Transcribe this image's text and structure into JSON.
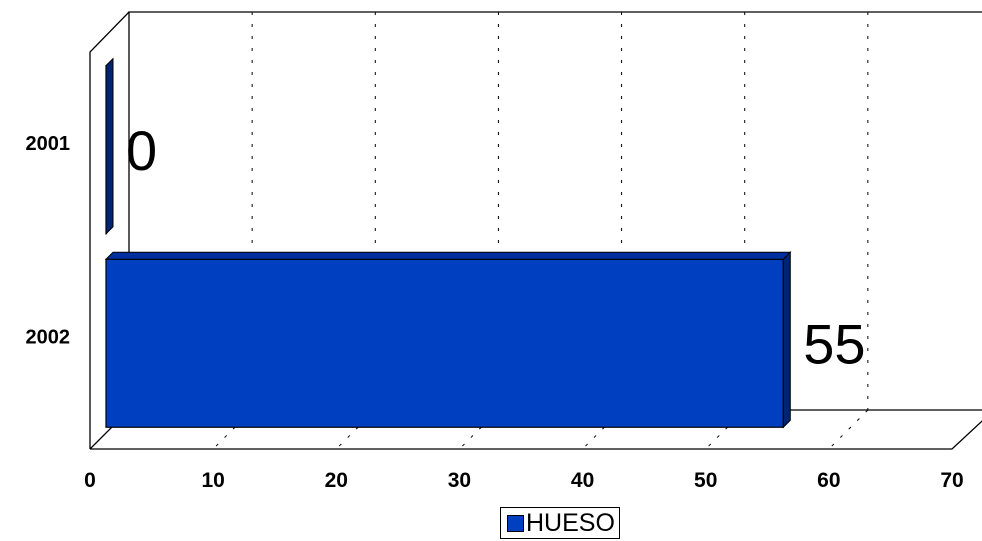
{
  "chart_data": {
    "type": "bar",
    "orientation": "horizontal",
    "three_d": true,
    "categories": [
      "2001",
      "2002"
    ],
    "series": [
      {
        "name": "HUESO",
        "values": [
          0,
          55
        ],
        "color": "#0040C0"
      }
    ],
    "data_labels": [
      "0",
      "55"
    ],
    "xlim": [
      0,
      70
    ],
    "xticks": [
      "0",
      "10",
      "20",
      "30",
      "40",
      "50",
      "60",
      "70"
    ],
    "grid": true,
    "legend": "bottom-center"
  }
}
